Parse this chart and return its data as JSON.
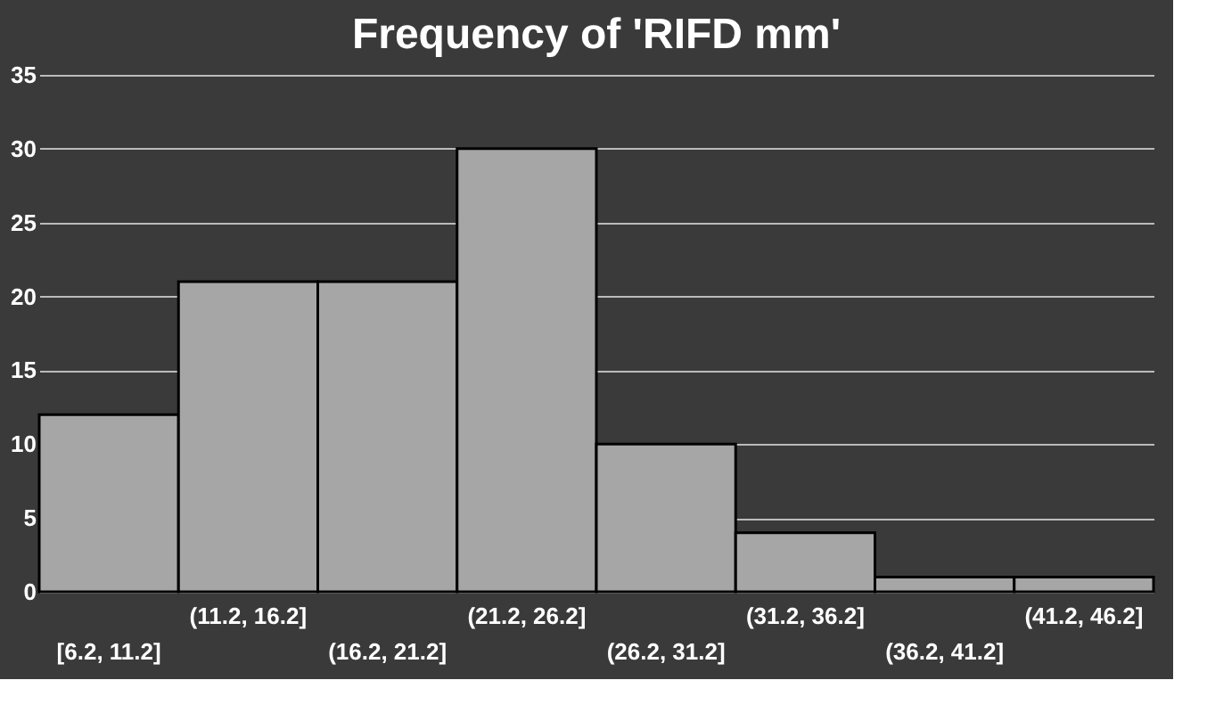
{
  "chart_data": {
    "type": "bar",
    "title": "Frequency of 'RIFD mm'",
    "categories": [
      "[6.2, 11.2]",
      "(11.2, 16.2]",
      "(16.2, 21.2]",
      "(21.2, 26.2]",
      "(26.2, 31.2]",
      "(31.2, 36.2]",
      "(36.2, 41.2]",
      "(41.2, 46.2]"
    ],
    "values": [
      12,
      21,
      21,
      30,
      10,
      4,
      1,
      1
    ],
    "color": "#a6a6a6",
    "ylim": [
      0,
      35
    ],
    "yticks": [
      0,
      5,
      10,
      15,
      20,
      25,
      30,
      35
    ],
    "grid": "y"
  }
}
